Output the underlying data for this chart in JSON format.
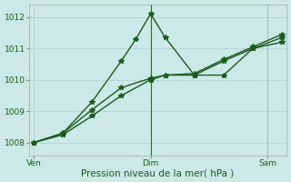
{
  "xlabel": "Pression niveau de la mer( hPa )",
  "background_color": "#cce8e8",
  "grid_color": "#b8d8d8",
  "line_color": "#1a5c1a",
  "x_ticks_pos": [
    0,
    8,
    16
  ],
  "x_tick_labels": [
    "Ven",
    "Dim",
    "Sam"
  ],
  "ylim": [
    1007.6,
    1012.4
  ],
  "y_ticks": [
    1008,
    1009,
    1010,
    1011,
    1012
  ],
  "xlim": [
    -0.3,
    17.3
  ],
  "line1_x": [
    0,
    2,
    4,
    6,
    7,
    8,
    9,
    11,
    13,
    15,
    17
  ],
  "line1_y": [
    1008.0,
    1008.3,
    1009.3,
    1010.6,
    1011.3,
    1012.1,
    1011.35,
    1010.15,
    1010.15,
    1011.0,
    1011.35
  ],
  "line2_x": [
    0,
    2,
    4,
    6,
    8,
    9,
    11,
    13,
    15,
    17
  ],
  "line2_y": [
    1008.0,
    1008.3,
    1009.05,
    1009.75,
    1010.05,
    1010.15,
    1010.15,
    1010.6,
    1011.0,
    1011.2
  ],
  "line3_x": [
    0,
    2,
    4,
    6,
    8,
    9,
    11,
    13,
    15,
    17
  ],
  "line3_y": [
    1008.0,
    1008.25,
    1008.85,
    1009.5,
    1010.0,
    1010.15,
    1010.2,
    1010.65,
    1011.05,
    1011.45
  ],
  "vline1_x": 8,
  "vline2_x": 16,
  "vline_color": "#336633",
  "vline2_color": "#99bbaa",
  "marker": "*",
  "markersize": 4,
  "linewidth": 1.0,
  "tick_fontsize": 6.5,
  "xlabel_fontsize": 7.5
}
